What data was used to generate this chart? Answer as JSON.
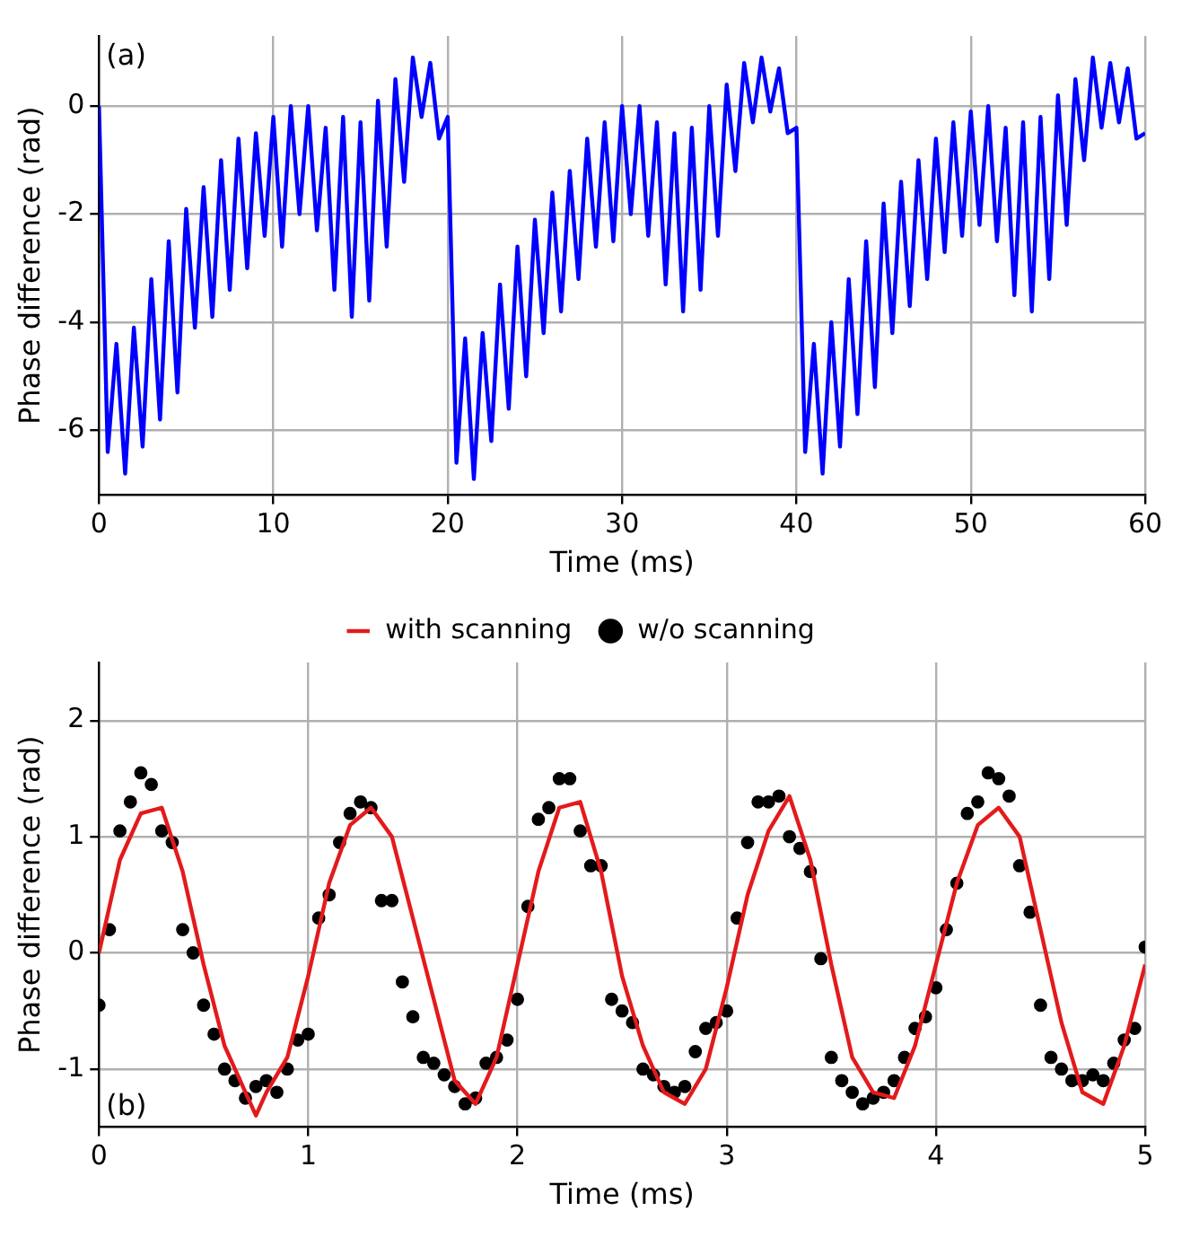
{
  "chart_data": [
    {
      "type": "line",
      "xlabel": "Time (ms)",
      "ylabel": "Phase difference (rad)",
      "annotations": [
        "(a)"
      ],
      "color": "#0000ff",
      "grid": true,
      "marker": "none",
      "xlim": [
        0,
        60
      ],
      "xticks": [
        0,
        10,
        20,
        30,
        40,
        50,
        60
      ],
      "ylim": [
        -7.2,
        1.3
      ],
      "yticks": [
        -6,
        -4,
        -2,
        0
      ],
      "x": [
        0,
        0.5,
        1,
        1.5,
        2,
        2.5,
        3,
        3.5,
        4,
        4.5,
        5,
        5.5,
        6,
        6.5,
        7,
        7.5,
        8,
        8.5,
        9,
        9.5,
        10,
        10.5,
        11,
        11.5,
        12,
        12.5,
        13,
        13.5,
        14,
        14.5,
        15,
        15.5,
        16,
        16.5,
        17,
        17.5,
        18,
        18.5,
        19,
        19.5,
        20,
        20.5,
        21,
        21.5,
        22,
        22.5,
        23,
        23.5,
        24,
        24.5,
        25,
        25.5,
        26,
        26.5,
        27,
        27.5,
        28,
        28.5,
        29,
        29.5,
        30,
        30.5,
        31,
        31.5,
        32,
        32.5,
        33,
        33.5,
        34,
        34.5,
        35,
        35.5,
        36,
        36.5,
        37,
        37.5,
        38,
        38.5,
        39,
        39.5,
        40,
        40.5,
        41,
        41.5,
        42,
        42.5,
        43,
        43.5,
        44,
        44.5,
        45,
        45.5,
        46,
        46.5,
        47,
        47.5,
        48,
        48.5,
        49,
        49.5,
        50,
        50.5,
        51,
        51.5,
        52,
        52.5,
        53,
        53.5,
        54,
        54.5,
        55,
        55.5,
        56,
        56.5,
        57,
        57.5,
        58,
        58.5,
        59,
        59.5,
        60
      ],
      "values": [
        0,
        -6.4,
        -4.4,
        -6.8,
        -4.1,
        -6.3,
        -3.2,
        -5.8,
        -2.5,
        -5.3,
        -1.9,
        -4.1,
        -1.5,
        -3.9,
        -1.0,
        -3.4,
        -0.6,
        -3.0,
        -0.5,
        -2.4,
        -0.2,
        -2.6,
        0.0,
        -2.0,
        0.0,
        -2.3,
        -0.4,
        -3.4,
        -0.2,
        -3.9,
        -0.3,
        -3.6,
        0.1,
        -2.6,
        0.5,
        -1.4,
        0.9,
        -0.2,
        0.8,
        -0.6,
        -0.2,
        -6.6,
        -4.3,
        -6.9,
        -4.2,
        -6.2,
        -3.3,
        -5.6,
        -2.6,
        -5.0,
        -2.1,
        -4.2,
        -1.6,
        -3.8,
        -1.2,
        -3.2,
        -0.6,
        -2.6,
        -0.3,
        -2.5,
        0.0,
        -2.0,
        0.0,
        -2.4,
        -0.3,
        -3.3,
        -0.5,
        -3.8,
        -0.4,
        -3.4,
        0.0,
        -2.4,
        0.4,
        -1.2,
        0.8,
        -0.3,
        0.9,
        -0.1,
        0.7,
        -0.5,
        -0.4,
        -6.4,
        -4.4,
        -6.8,
        -4.0,
        -6.3,
        -3.2,
        -5.7,
        -2.5,
        -5.2,
        -1.8,
        -4.2,
        -1.4,
        -3.7,
        -1.0,
        -3.2,
        -0.6,
        -2.7,
        -0.3,
        -2.4,
        -0.1,
        -2.2,
        0.0,
        -2.5,
        -0.4,
        -3.5,
        -0.3,
        -3.8,
        -0.2,
        -3.2,
        0.2,
        -2.2,
        0.5,
        -1.0,
        0.9,
        -0.4,
        0.8,
        -0.3,
        0.7,
        -0.6,
        -0.5
      ]
    },
    {
      "type": "line",
      "xlabel": "Time (ms)",
      "ylabel": "Phase difference (rad)",
      "annotations": [
        "(b)"
      ],
      "grid": true,
      "legend": "top",
      "xlim": [
        0,
        5
      ],
      "xticks": [
        0,
        1,
        2,
        3,
        4,
        5
      ],
      "ylim": [
        -1.5,
        2.5
      ],
      "yticks": [
        -1,
        0,
        1,
        2
      ],
      "series": [
        {
          "name": "with scanning",
          "type": "line",
          "marker": "none",
          "color": "#e31a1c",
          "x": [
            0,
            0.1,
            0.2,
            0.3,
            0.4,
            0.5,
            0.6,
            0.7,
            0.75,
            0.8,
            0.9,
            1.0,
            1.1,
            1.2,
            1.3,
            1.4,
            1.5,
            1.6,
            1.7,
            1.8,
            1.9,
            2.0,
            2.1,
            2.2,
            2.3,
            2.4,
            2.5,
            2.6,
            2.7,
            2.8,
            2.9,
            3.0,
            3.1,
            3.2,
            3.3,
            3.4,
            3.5,
            3.6,
            3.7,
            3.8,
            3.9,
            4.0,
            4.1,
            4.2,
            4.3,
            4.4,
            4.5,
            4.6,
            4.7,
            4.8,
            4.9,
            5.0
          ],
          "values": [
            0,
            0.8,
            1.2,
            1.25,
            0.7,
            -0.1,
            -0.8,
            -1.2,
            -1.4,
            -1.2,
            -0.9,
            -0.2,
            0.6,
            1.1,
            1.25,
            1.0,
            0.3,
            -0.4,
            -1.1,
            -1.3,
            -0.9,
            -0.1,
            0.7,
            1.25,
            1.3,
            0.7,
            -0.2,
            -0.8,
            -1.2,
            -1.3,
            -1.0,
            -0.3,
            0.5,
            1.05,
            1.35,
            0.8,
            -0.1,
            -0.9,
            -1.2,
            -1.25,
            -0.8,
            -0.1,
            0.6,
            1.1,
            1.25,
            1.0,
            0.2,
            -0.6,
            -1.2,
            -1.3,
            -0.8,
            -0.1
          ]
        },
        {
          "name": "w/o scanning",
          "type": "scatter",
          "marker": "circle",
          "color": "#000000",
          "x": [
            0,
            0.05,
            0.1,
            0.15,
            0.2,
            0.25,
            0.3,
            0.35,
            0.4,
            0.45,
            0.5,
            0.55,
            0.6,
            0.65,
            0.7,
            0.75,
            0.8,
            0.85,
            0.9,
            0.95,
            1.0,
            1.05,
            1.1,
            1.15,
            1.2,
            1.25,
            1.3,
            1.35,
            1.4,
            1.45,
            1.5,
            1.55,
            1.6,
            1.65,
            1.7,
            1.75,
            1.8,
            1.85,
            1.9,
            1.95,
            2.0,
            2.05,
            2.1,
            2.15,
            2.2,
            2.25,
            2.3,
            2.35,
            2.4,
            2.45,
            2.5,
            2.55,
            2.6,
            2.65,
            2.7,
            2.75,
            2.8,
            2.85,
            2.9,
            2.95,
            3.0,
            3.05,
            3.1,
            3.15,
            3.2,
            3.25,
            3.3,
            3.35,
            3.4,
            3.45,
            3.5,
            3.55,
            3.6,
            3.65,
            3.7,
            3.75,
            3.8,
            3.85,
            3.9,
            3.95,
            4.0,
            4.05,
            4.1,
            4.15,
            4.2,
            4.25,
            4.3,
            4.35,
            4.4,
            4.45,
            4.5,
            4.55,
            4.6,
            4.65,
            4.7,
            4.75,
            4.8,
            4.85,
            4.9,
            4.95,
            5.0
          ],
          "values": [
            -0.45,
            0.2,
            1.05,
            1.3,
            1.55,
            1.45,
            1.05,
            0.95,
            0.2,
            0.0,
            -0.45,
            -0.7,
            -1.0,
            -1.1,
            -1.25,
            -1.15,
            -1.1,
            -1.2,
            -1.0,
            -0.75,
            -0.7,
            0.3,
            0.5,
            0.95,
            1.2,
            1.3,
            1.25,
            0.45,
            0.45,
            -0.25,
            -0.55,
            -0.9,
            -0.95,
            -1.05,
            -1.15,
            -1.3,
            -1.25,
            -0.95,
            -0.9,
            -0.75,
            -0.4,
            0.4,
            1.15,
            1.25,
            1.5,
            1.5,
            1.05,
            0.75,
            0.75,
            -0.4,
            -0.5,
            -0.6,
            -1.0,
            -1.05,
            -1.15,
            -1.2,
            -1.15,
            -0.85,
            -0.65,
            -0.6,
            -0.5,
            0.3,
            0.95,
            1.3,
            1.3,
            1.35,
            1.0,
            0.9,
            0.7,
            -0.05,
            -0.9,
            -1.1,
            -1.2,
            -1.3,
            -1.25,
            -1.2,
            -1.1,
            -0.9,
            -0.65,
            -0.55,
            -0.3,
            0.2,
            0.6,
            1.2,
            1.3,
            1.55,
            1.5,
            1.35,
            0.75,
            0.35,
            -0.45,
            -0.9,
            -1.0,
            -1.1,
            -1.1,
            -1.05,
            -1.1,
            -0.95,
            -0.75,
            -0.65,
            0.05
          ]
        }
      ]
    }
  ]
}
